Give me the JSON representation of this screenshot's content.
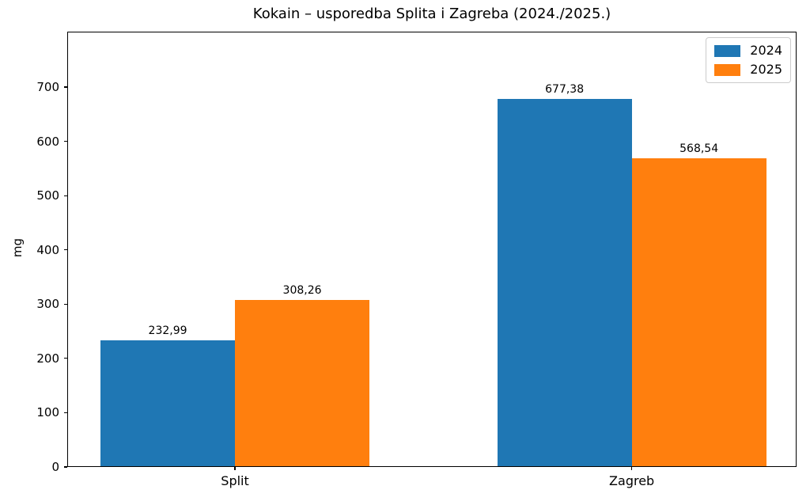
{
  "chart_data": {
    "type": "bar",
    "title": "Kokain – usporedba Splita i Zagreba (2024./2025.)",
    "ylabel": "mg",
    "xlabel": "",
    "categories": [
      "Split",
      "Zagreb"
    ],
    "series": [
      {
        "name": "2024",
        "color": "#1f77b4",
        "values": [
          232.99,
          677.38
        ],
        "labels": [
          "232,99",
          "677,38"
        ]
      },
      {
        "name": "2025",
        "color": "#ff7f0e",
        "values": [
          308.26,
          568.54
        ],
        "labels": [
          "308,26",
          "568,54"
        ]
      }
    ],
    "ylim": [
      0,
      802
    ],
    "yticks": [
      0,
      100,
      200,
      300,
      400,
      500,
      600,
      700
    ],
    "grid": false,
    "legend_position": "upper right",
    "axis_color": "#000000",
    "background_color": "#ffffff"
  }
}
